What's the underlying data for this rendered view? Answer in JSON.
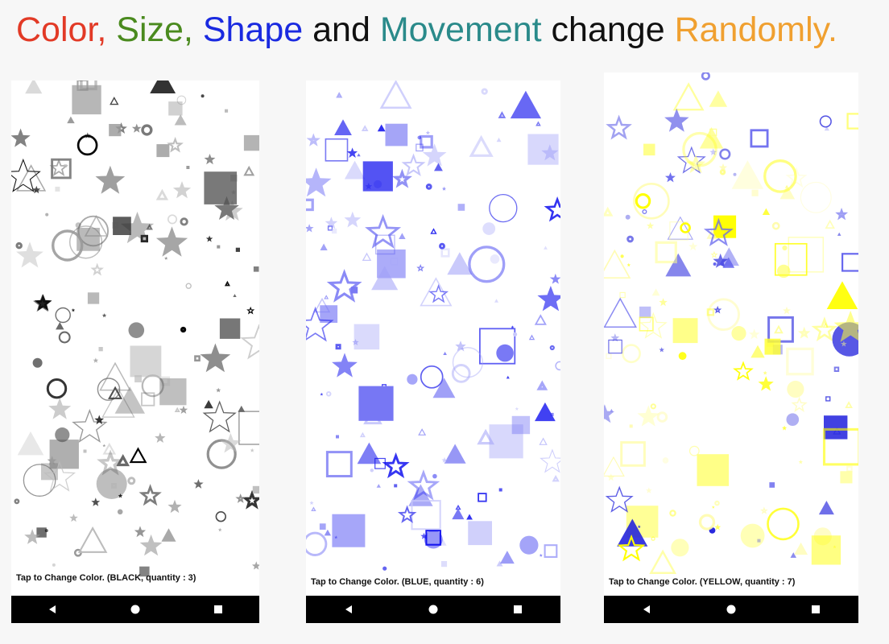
{
  "headline": {
    "parts": [
      {
        "text": "Color, ",
        "color": "#e23a26"
      },
      {
        "text": "Size, ",
        "color": "#4a8a1e"
      },
      {
        "text": "Shape ",
        "color": "#1a2ae0"
      },
      {
        "text": "and ",
        "color": "#111111"
      },
      {
        "text": "Movement ",
        "color": "#2a8a8a"
      },
      {
        "text": "change ",
        "color": "#111111"
      },
      {
        "text": "Randomly.",
        "color": "#f0a030"
      }
    ]
  },
  "screens": [
    {
      "caption": "Tap to Change Color.  (BLACK, quantity : 3)",
      "palette": [
        "#000000",
        "#333333",
        "#555555",
        "#777777",
        "#999999",
        "#bbbbbb"
      ],
      "accent": "#000000"
    },
    {
      "caption": "Tap to Change Color.  (BLUE, quantity : 6)",
      "palette": [
        "#1010ee",
        "#2a2af0",
        "#5555f0",
        "#7777f4",
        "#a0a0f8",
        "#c8c8fb"
      ],
      "accent": "#1010ee"
    },
    {
      "caption": "Tap to Change Color.  (YELLOW, quantity : 7)",
      "palette": [
        "#ffff00",
        "#ffff33",
        "#ffff88",
        "#fffcaa",
        "#2222dd",
        "#6666ee"
      ],
      "accent": "#ffff00"
    }
  ],
  "icons": {
    "back": "back-triangle-icon",
    "home": "home-circle-icon",
    "recents": "recents-square-icon"
  }
}
